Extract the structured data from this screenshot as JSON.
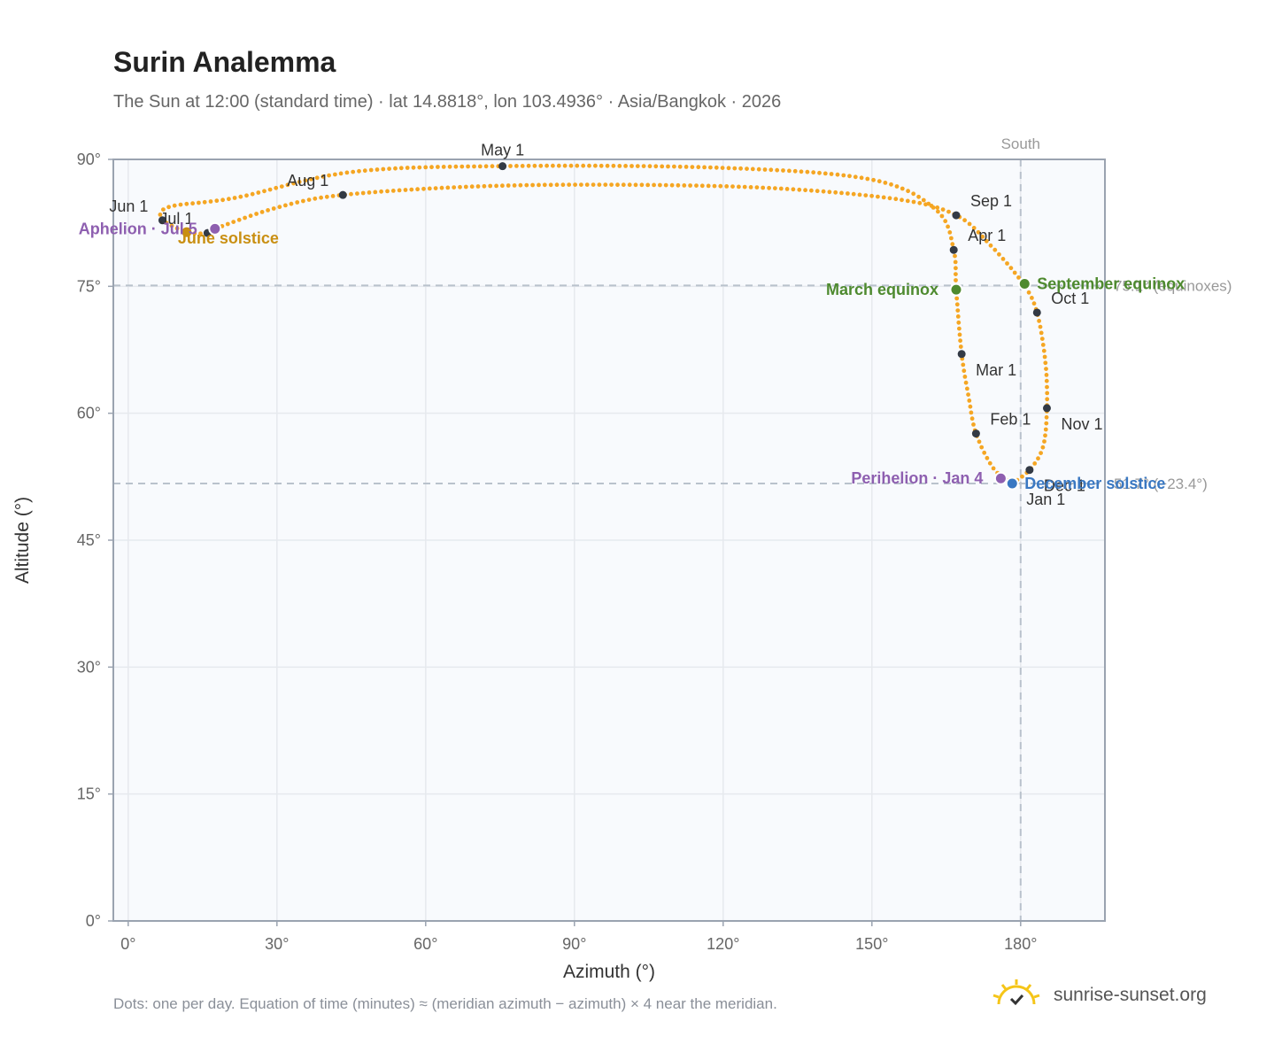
{
  "title": "Surin Analemma",
  "subtitle": "The Sun at 12:00 (standard time) · lat 14.8818°, lon 103.4936° · Asia/Bangkok · 2026",
  "footnote": "Dots: one per day. Equation of time (minutes) ≈ (meridian azimuth − azimuth) × 4 near the meridian.",
  "brand": {
    "name": "sunrise-sunset.org",
    "icon": "sun-check-icon"
  },
  "colors": {
    "path": "#f5a623",
    "month": "#333a45",
    "equinox": "#4e8a2f",
    "solstice_june": "#c98f12",
    "solstice_dec": "#3a78c2",
    "apsis": "#8e5fb0",
    "grid": "#e6e9ee",
    "plot_bg": "#f8fafd",
    "frame": "#9aa3b0",
    "ref": "#b9c2cc"
  },
  "chart_data": {
    "type": "scatter",
    "title": "Surin Analemma",
    "xlabel": "Azimuth (°)",
    "ylabel": "Altitude (°)",
    "xlim": [
      -3,
      197
    ],
    "ylim": [
      0,
      90
    ],
    "xticks": [
      "0°",
      "30°",
      "60°",
      "90°",
      "120°",
      "150°",
      "180°"
    ],
    "yticks": [
      "0°",
      "15°",
      "30°",
      "45°",
      "60°",
      "75°",
      "90°"
    ],
    "grid": true,
    "south_label": "South",
    "reference_lines": [
      {
        "axis": "x",
        "value": 180
      },
      {
        "axis": "y",
        "value": 75.1,
        "label": "75.1° (equinoxes)"
      },
      {
        "axis": "y",
        "value": 51.7,
        "label": "51.7° (−23.4°)"
      }
    ],
    "path_key_points": [
      {
        "az": 178.3,
        "alt": 51.7
      },
      {
        "az": 174.5,
        "alt": 53.5
      },
      {
        "az": 171.0,
        "alt": 57.6
      },
      {
        "az": 169.5,
        "alt": 62.0
      },
      {
        "az": 168.1,
        "alt": 67.0
      },
      {
        "az": 167.0,
        "alt": 74.6
      },
      {
        "az": 166.5,
        "alt": 79.3
      },
      {
        "az": 163.0,
        "alt": 84.0
      },
      {
        "az": 150.0,
        "alt": 87.6
      },
      {
        "az": 120.0,
        "alt": 89.0
      },
      {
        "az": 75.5,
        "alt": 89.2
      },
      {
        "az": 45.0,
        "alt": 88.5
      },
      {
        "az": 22.0,
        "alt": 85.5
      },
      {
        "az": 9.0,
        "alt": 84.5
      },
      {
        "az": 6.5,
        "alt": 83.5
      },
      {
        "az": 6.9,
        "alt": 82.8
      },
      {
        "az": 11.8,
        "alt": 81.4
      },
      {
        "az": 16.0,
        "alt": 81.3
      },
      {
        "az": 17.5,
        "alt": 81.8
      },
      {
        "az": 30.0,
        "alt": 84.3
      },
      {
        "az": 43.3,
        "alt": 85.8
      },
      {
        "az": 70.0,
        "alt": 86.8
      },
      {
        "az": 100.0,
        "alt": 87.0
      },
      {
        "az": 130.0,
        "alt": 86.6
      },
      {
        "az": 155.0,
        "alt": 85.3
      },
      {
        "az": 167.0,
        "alt": 83.4
      },
      {
        "az": 174.0,
        "alt": 79.8
      },
      {
        "az": 180.5,
        "alt": 75.3
      },
      {
        "az": 183.3,
        "alt": 71.9
      },
      {
        "az": 185.0,
        "alt": 66.0
      },
      {
        "az": 185.3,
        "alt": 60.6
      },
      {
        "az": 184.5,
        "alt": 56.0
      },
      {
        "az": 181.8,
        "alt": 53.3
      },
      {
        "az": 178.3,
        "alt": 51.7
      }
    ],
    "month_markers": [
      {
        "label": "Jan 1",
        "az": 178.3,
        "alt": 51.7,
        "pos": "below-right"
      },
      {
        "label": "Feb 1",
        "az": 171.0,
        "alt": 57.6,
        "pos": "above-right"
      },
      {
        "label": "Mar 1",
        "az": 168.1,
        "alt": 67.0,
        "pos": "below-right"
      },
      {
        "label": "Apr 1",
        "az": 166.5,
        "alt": 79.3,
        "pos": "above-right"
      },
      {
        "label": "May 1",
        "az": 75.5,
        "alt": 89.2,
        "pos": "above"
      },
      {
        "label": "Jun 1",
        "az": 6.9,
        "alt": 82.8,
        "pos": "above-left"
      },
      {
        "label": "Jul 1",
        "az": 16.0,
        "alt": 81.3,
        "pos": "above-left"
      },
      {
        "label": "Aug 1",
        "az": 43.3,
        "alt": 85.8,
        "pos": "above-left"
      },
      {
        "label": "Sep 1",
        "az": 167.0,
        "alt": 83.4,
        "pos": "above-right"
      },
      {
        "label": "Oct 1",
        "az": 183.3,
        "alt": 71.9,
        "pos": "above-right"
      },
      {
        "label": "Nov 1",
        "az": 185.3,
        "alt": 60.6,
        "pos": "below-right"
      },
      {
        "label": "Dec 1",
        "az": 181.8,
        "alt": 53.3,
        "pos": "below-right"
      }
    ],
    "events": [
      {
        "label": "March equinox",
        "az": 167.0,
        "alt": 74.6,
        "color_key": "equinox",
        "pos": "left"
      },
      {
        "label": "September equinox",
        "az": 180.8,
        "alt": 75.3,
        "color_key": "equinox",
        "pos": "right"
      },
      {
        "label": "June solstice",
        "az": 11.8,
        "alt": 81.4,
        "color_key": "solstice_june",
        "pos": "below-right"
      },
      {
        "label": "December solstice",
        "az": 178.3,
        "alt": 51.7,
        "color_key": "solstice_dec",
        "pos": "right"
      },
      {
        "label": "Aphelion · Jul 5",
        "az": 17.5,
        "alt": 81.8,
        "color_key": "apsis",
        "pos": "left"
      },
      {
        "label": "Perihelion · Jan 4",
        "az": 176.0,
        "alt": 52.3,
        "color_key": "apsis",
        "pos": "left"
      }
    ]
  }
}
